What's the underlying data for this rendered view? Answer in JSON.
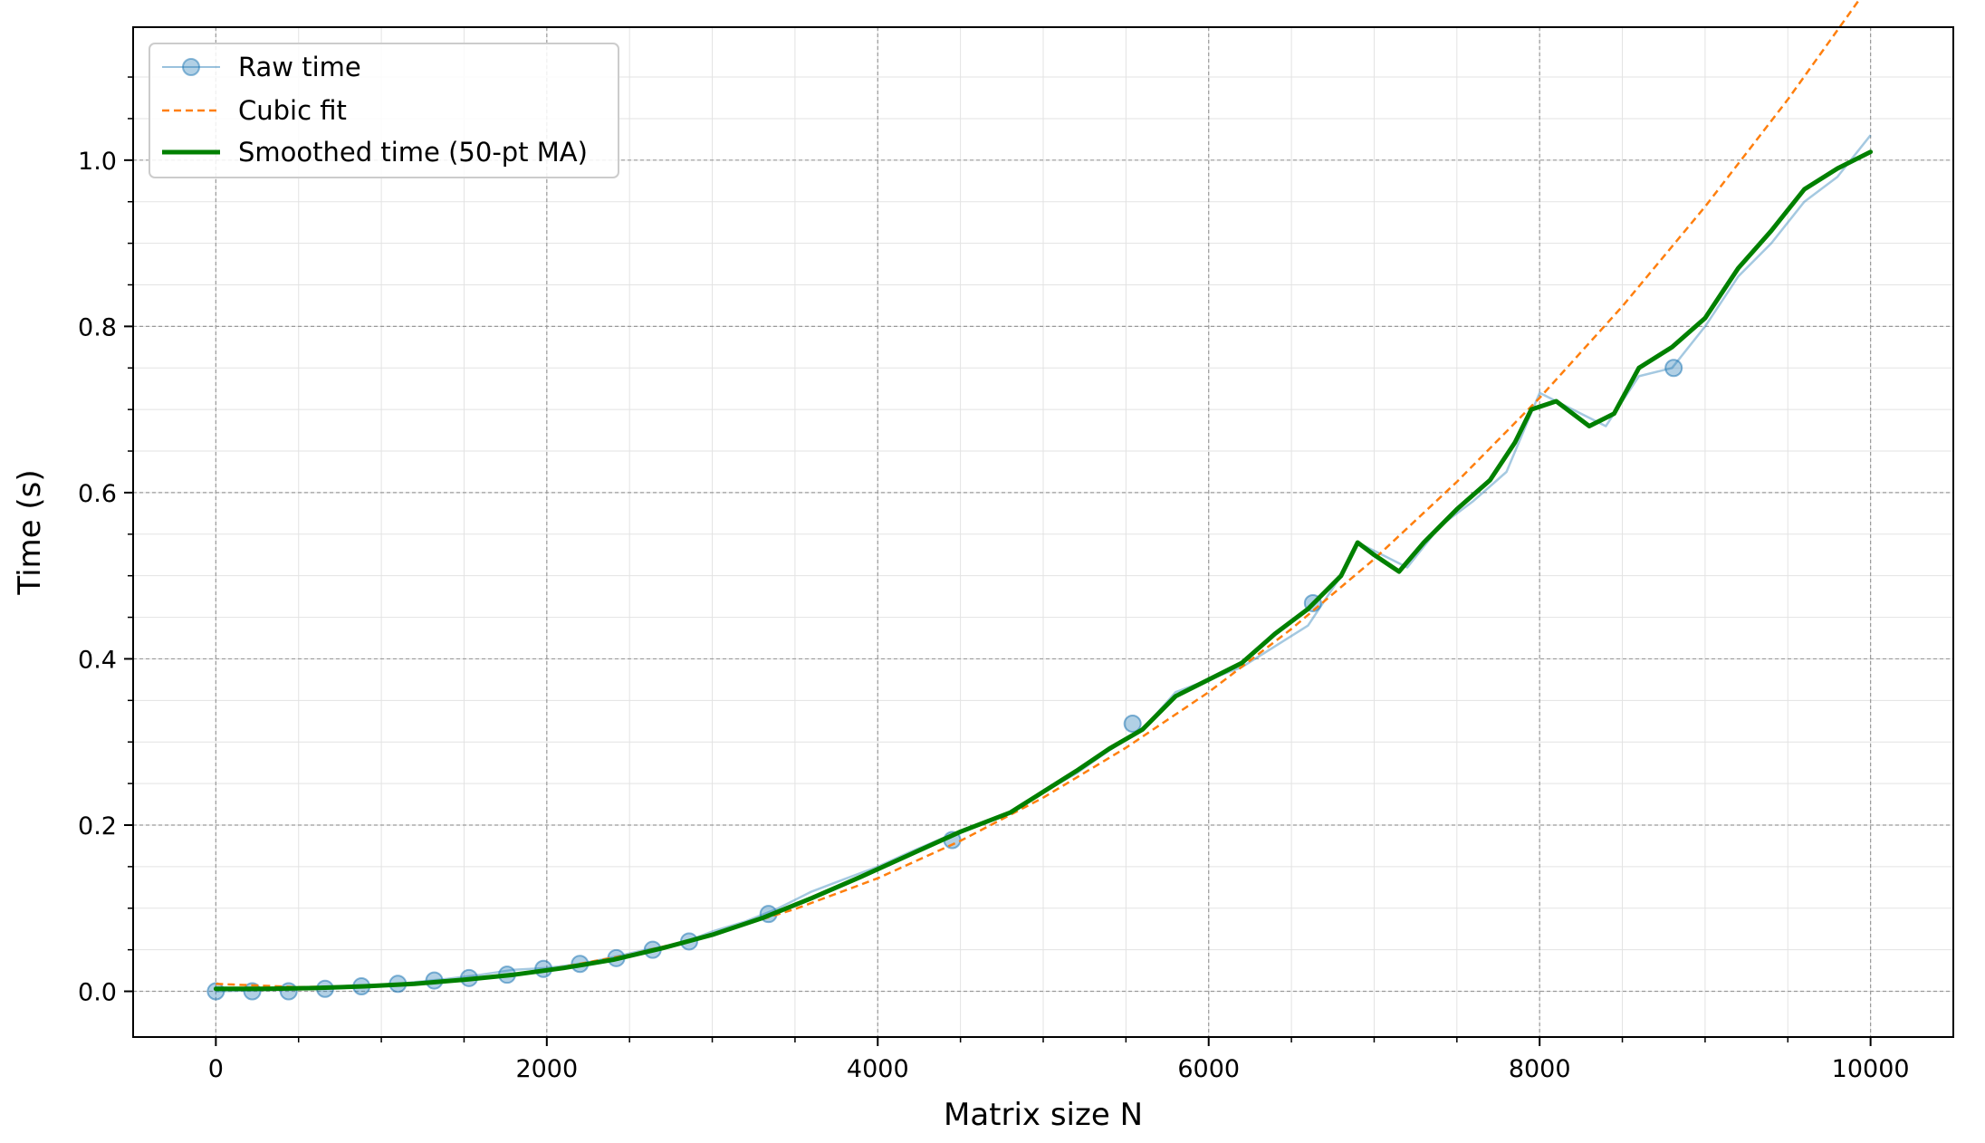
{
  "chart_data": {
    "type": "line",
    "title": "",
    "xlabel": "Matrix size N",
    "ylabel": "Time (s)",
    "xlim": [
      -500,
      10500
    ],
    "ylim": [
      -0.055,
      1.16
    ],
    "xticks": [
      0,
      2000,
      4000,
      6000,
      8000,
      10000
    ],
    "xtick_labels": [
      "0",
      "2000",
      "4000",
      "6000",
      "8000",
      "10000"
    ],
    "yticks": [
      0.0,
      0.2,
      0.4,
      0.6,
      0.8,
      1.0
    ],
    "ytick_labels": [
      "0.0",
      "0.2",
      "0.4",
      "0.6",
      "0.8",
      "1.0"
    ],
    "grid": true,
    "legend_position": "top-left",
    "series": [
      {
        "name": "Raw time",
        "style": "thin line with circle markers",
        "color": "#1f77b4",
        "x": [
          0,
          200,
          400,
          600,
          800,
          1000,
          1200,
          1400,
          1600,
          1800,
          2000,
          2200,
          2400,
          2600,
          2800,
          3000,
          3200,
          3400,
          3600,
          3800,
          4000,
          4200,
          4400,
          4600,
          4800,
          5000,
          5200,
          5400,
          5600,
          5800,
          6000,
          6200,
          6400,
          6600,
          6800,
          6900,
          7000,
          7200,
          7400,
          7600,
          7800,
          8000,
          8200,
          8400,
          8600,
          8800,
          9000,
          9200,
          9400,
          9600,
          9800,
          10000
        ],
        "y": [
          0.0,
          0.001,
          0.002,
          0.003,
          0.005,
          0.007,
          0.011,
          0.015,
          0.02,
          0.026,
          0.028,
          0.033,
          0.041,
          0.05,
          0.057,
          0.072,
          0.084,
          0.1,
          0.12,
          0.135,
          0.15,
          0.168,
          0.185,
          0.2,
          0.215,
          0.24,
          0.262,
          0.29,
          0.315,
          0.36,
          0.375,
          0.39,
          0.415,
          0.44,
          0.5,
          0.54,
          0.53,
          0.51,
          0.56,
          0.59,
          0.625,
          0.72,
          0.7,
          0.68,
          0.74,
          0.75,
          0.8,
          0.86,
          0.9,
          0.95,
          0.98,
          1.03
        ],
        "markers": [
          {
            "x": 0,
            "y": 0.0
          },
          {
            "x": 220,
            "y": 0.0
          },
          {
            "x": 440,
            "y": 0.0
          },
          {
            "x": 660,
            "y": 0.003
          },
          {
            "x": 880,
            "y": 0.006
          },
          {
            "x": 1100,
            "y": 0.009
          },
          {
            "x": 1320,
            "y": 0.013
          },
          {
            "x": 1530,
            "y": 0.016
          },
          {
            "x": 1760,
            "y": 0.02
          },
          {
            "x": 1980,
            "y": 0.027
          },
          {
            "x": 2200,
            "y": 0.033
          },
          {
            "x": 2420,
            "y": 0.04
          },
          {
            "x": 2640,
            "y": 0.05
          },
          {
            "x": 2860,
            "y": 0.06
          },
          {
            "x": 3340,
            "y": 0.093
          },
          {
            "x": 4450,
            "y": 0.182
          },
          {
            "x": 5540,
            "y": 0.322
          },
          {
            "x": 6630,
            "y": 0.467
          },
          {
            "x": 8810,
            "y": 0.75
          }
        ]
      },
      {
        "name": "Cubic fit",
        "style": "dashed",
        "color": "#ff7f0e",
        "x": [
          0,
          500,
          1000,
          1500,
          2000,
          2500,
          3000,
          3500,
          4000,
          4500,
          5000,
          5500,
          6000,
          6500,
          7000,
          7500,
          8000,
          8500,
          9000,
          9500,
          10000
        ],
        "y": [
          0.009,
          0.005,
          0.007,
          0.014,
          0.026,
          0.044,
          0.068,
          0.099,
          0.136,
          0.181,
          0.233,
          0.293,
          0.36,
          0.436,
          0.52,
          0.613,
          0.714,
          0.824,
          0.944,
          1.073,
          1.212
        ]
      },
      {
        "name": "Smoothed time (50-pt MA)",
        "style": "thick line",
        "color": "#008000",
        "x": [
          0,
          300,
          600,
          900,
          1200,
          1500,
          1800,
          2100,
          2400,
          2700,
          3000,
          3300,
          3600,
          3900,
          4200,
          4500,
          4800,
          5000,
          5200,
          5400,
          5600,
          5800,
          6000,
          6200,
          6400,
          6600,
          6800,
          6900,
          7000,
          7150,
          7300,
          7500,
          7700,
          7850,
          7950,
          8100,
          8300,
          8450,
          8600,
          8800,
          9000,
          9200,
          9400,
          9600,
          9800,
          10000
        ],
        "y": [
          0.003,
          0.003,
          0.004,
          0.006,
          0.009,
          0.014,
          0.02,
          0.028,
          0.038,
          0.052,
          0.068,
          0.088,
          0.112,
          0.138,
          0.165,
          0.192,
          0.215,
          0.24,
          0.265,
          0.292,
          0.315,
          0.355,
          0.375,
          0.395,
          0.43,
          0.46,
          0.5,
          0.54,
          0.525,
          0.505,
          0.54,
          0.58,
          0.615,
          0.66,
          0.7,
          0.71,
          0.68,
          0.695,
          0.75,
          0.775,
          0.81,
          0.87,
          0.915,
          0.965,
          0.99,
          1.01
        ]
      }
    ]
  },
  "legend": [
    {
      "label": "Raw time"
    },
    {
      "label": "Cubic fit"
    },
    {
      "label": "Smoothed time (50-pt MA)"
    }
  ]
}
